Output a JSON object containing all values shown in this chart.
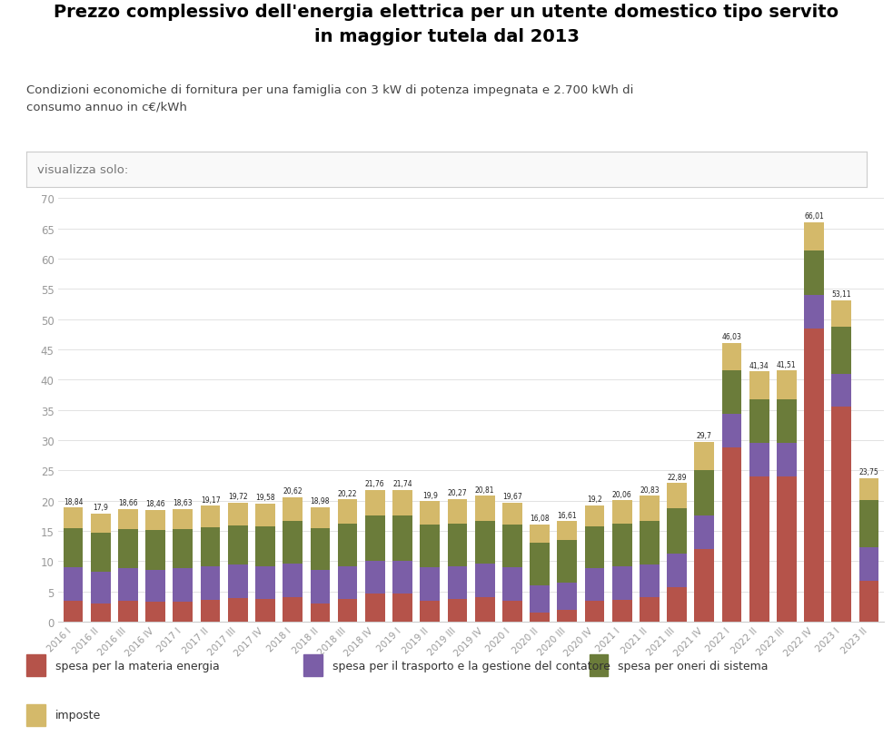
{
  "title": "Prezzo complessivo dell'energia elettrica per un utente domestico tipo servito\nin maggior tutela dal 2013",
  "subtitle": "Condizioni economiche di fornitura per una famiglia con 3 kW di potenza impegnata e 2.700 kWh di\nconsumo annuo in c€/kWh",
  "filter_label": "visualizza solo:",
  "categories": [
    "2016 I",
    "2016 II",
    "2016 III",
    "2016 IV",
    "2017 I",
    "2017 II",
    "2017 III",
    "2017 IV",
    "2018 I",
    "2018 II",
    "2018 III",
    "2018 IV",
    "2019 I",
    "2019 II",
    "2019 III",
    "2019 IV",
    "2020 I",
    "2020 II",
    "2020 III",
    "2020 IV",
    "2021 I",
    "2021 II",
    "2021 III",
    "2021 IV",
    "2022 I",
    "2022 II",
    "2022 III",
    "2022 IV",
    "2023 I",
    "2023 II"
  ],
  "totals": [
    18.84,
    17.9,
    18.66,
    18.46,
    18.63,
    19.17,
    19.72,
    19.58,
    20.62,
    18.98,
    20.22,
    21.76,
    21.74,
    19.9,
    20.27,
    20.81,
    19.67,
    16.08,
    16.61,
    19.2,
    20.06,
    20.83,
    22.89,
    29.7,
    46.03,
    41.34,
    41.51,
    66.01,
    53.11,
    23.75
  ],
  "materia_energia": [
    3.5,
    3.0,
    3.5,
    3.3,
    3.3,
    3.6,
    3.9,
    3.7,
    4.1,
    3.0,
    3.7,
    4.6,
    4.6,
    3.5,
    3.7,
    4.1,
    3.5,
    1.5,
    2.0,
    3.5,
    3.6,
    4.0,
    5.7,
    12.0,
    28.8,
    24.0,
    24.0,
    48.5,
    35.5,
    6.8
  ],
  "trasporto": [
    5.5,
    5.2,
    5.3,
    5.3,
    5.5,
    5.5,
    5.5,
    5.5,
    5.5,
    5.5,
    5.5,
    5.5,
    5.5,
    5.5,
    5.5,
    5.5,
    5.5,
    4.5,
    4.5,
    5.3,
    5.5,
    5.5,
    5.5,
    5.5,
    5.5,
    5.5,
    5.5,
    5.5,
    5.5,
    5.5
  ],
  "oneri_sistema": [
    6.5,
    6.5,
    6.5,
    6.5,
    6.5,
    6.5,
    6.5,
    6.5,
    7.0,
    7.0,
    7.0,
    7.5,
    7.5,
    7.0,
    7.0,
    7.0,
    7.0,
    7.0,
    7.0,
    6.9,
    7.1,
    7.1,
    7.5,
    7.6,
    7.3,
    7.2,
    7.3,
    7.4,
    7.7,
    7.8
  ],
  "imposte": [
    3.34,
    3.2,
    3.36,
    3.36,
    3.33,
    3.57,
    3.82,
    3.78,
    3.92,
    3.48,
    3.92,
    4.16,
    4.14,
    3.9,
    4.07,
    4.21,
    3.67,
    3.08,
    3.11,
    3.5,
    3.86,
    4.23,
    4.19,
    4.6,
    4.43,
    4.64,
    4.71,
    4.61,
    4.41,
    3.65
  ],
  "color_materia": "#b5534a",
  "color_trasporto": "#7b5ea7",
  "color_oneri": "#6b7c3a",
  "color_imposte": "#d4b96a",
  "background_color": "#ffffff",
  "plot_bg_color": "#ffffff",
  "grid_color": "#dddddd",
  "ylim": [
    0,
    70
  ],
  "yticks": [
    0,
    5,
    10,
    15,
    20,
    25,
    30,
    35,
    40,
    45,
    50,
    55,
    60,
    65,
    70
  ],
  "legend_labels": [
    "spesa per la materia energia",
    "spesa per il trasporto e la gestione del contatore",
    "spesa per oneri di sistema",
    "imposte"
  ]
}
